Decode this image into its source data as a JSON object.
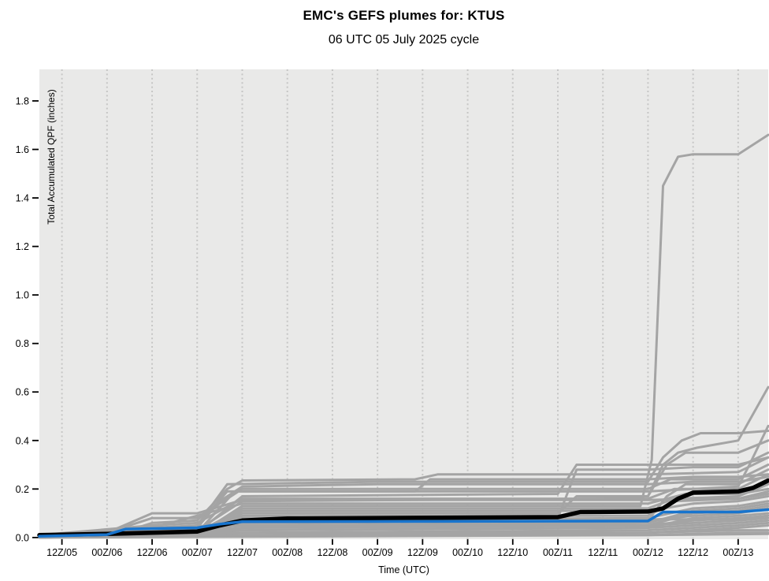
{
  "header": {
    "title": "EMC's GEFS plumes for: KTUS",
    "subtitle": "06 UTC 05 July 2025 cycle"
  },
  "chart_data": {
    "type": "line",
    "title": "EMC's GEFS plumes for: KTUS",
    "subtitle": "06 UTC 05 July 2025 cycle",
    "xlabel": "Time (UTC)",
    "ylabel": "Total Accumulated QPF (inches)",
    "x_unit": "forecast hours after 06 UTC 05 July 2025",
    "xlim": [
      0,
      194
    ],
    "ylim": [
      -0.007,
      1.93
    ],
    "x_ticks": [
      6,
      18,
      30,
      42,
      54,
      66,
      78,
      90,
      102,
      114,
      126,
      138,
      150,
      162,
      174,
      186
    ],
    "x_tick_labels": [
      "12Z/05",
      "00Z/06",
      "12Z/06",
      "00Z/07",
      "12Z/07",
      "00Z/08",
      "12Z/08",
      "00Z/09",
      "12Z/09",
      "00Z/10",
      "12Z/10",
      "00Z/11",
      "12Z/11",
      "00Z/12",
      "12Z/12",
      "00Z/13"
    ],
    "y_ticks": [
      0.0,
      0.2,
      0.4,
      0.6,
      0.8,
      1.0,
      1.2,
      1.4,
      1.6,
      1.8
    ],
    "grid": "vertical-dashed",
    "legend": "none",
    "colors": {
      "panel_bg": "#e9e9e8",
      "grid": "#c6c6c5",
      "member": "#a4a4a4",
      "mean": "#000000",
      "control": "#1874cd",
      "axis": "#000000"
    },
    "mean": {
      "name": "ensemble mean",
      "width": 5.5,
      "points": [
        [
          0,
          0.01
        ],
        [
          18,
          0.015
        ],
        [
          30,
          0.02
        ],
        [
          42,
          0.025
        ],
        [
          48,
          0.05
        ],
        [
          54,
          0.07
        ],
        [
          66,
          0.078
        ],
        [
          138,
          0.084
        ],
        [
          144,
          0.105
        ],
        [
          162,
          0.107
        ],
        [
          166,
          0.12
        ],
        [
          170,
          0.16
        ],
        [
          174,
          0.185
        ],
        [
          186,
          0.19
        ],
        [
          190,
          0.205
        ],
        [
          194,
          0.235
        ]
      ]
    },
    "control": {
      "name": "control member",
      "width": 3.5,
      "points": [
        [
          0,
          0.005
        ],
        [
          18,
          0.012
        ],
        [
          23,
          0.035
        ],
        [
          42,
          0.04
        ],
        [
          48,
          0.055
        ],
        [
          54,
          0.065
        ],
        [
          162,
          0.068
        ],
        [
          166,
          0.105
        ],
        [
          186,
          0.105
        ],
        [
          194,
          0.115
        ]
      ]
    },
    "members": [
      [
        [
          0,
          0.01
        ],
        [
          18,
          0.01
        ],
        [
          42,
          0.02
        ],
        [
          48,
          0.07
        ],
        [
          54,
          0.13
        ],
        [
          160,
          0.13
        ],
        [
          163,
          0.32
        ],
        [
          166,
          1.45
        ],
        [
          170,
          1.57
        ],
        [
          174,
          1.58
        ],
        [
          186,
          1.58
        ],
        [
          194,
          1.66
        ]
      ],
      [
        [
          0,
          0.01
        ],
        [
          30,
          0.02
        ],
        [
          42,
          0.05
        ],
        [
          50,
          0.22
        ],
        [
          90,
          0.23
        ],
        [
          162,
          0.23
        ],
        [
          166,
          0.33
        ],
        [
          171,
          0.4
        ],
        [
          176,
          0.43
        ],
        [
          186,
          0.43
        ],
        [
          194,
          0.44
        ]
      ],
      [
        [
          0,
          0.01
        ],
        [
          24,
          0.03
        ],
        [
          30,
          0.06
        ],
        [
          42,
          0.07
        ],
        [
          50,
          0.2
        ],
        [
          54,
          0.235
        ],
        [
          100,
          0.24
        ],
        [
          106,
          0.26
        ],
        [
          162,
          0.26
        ],
        [
          186,
          0.27
        ],
        [
          194,
          0.33
        ]
      ],
      [
        [
          0,
          0.0
        ],
        [
          42,
          0.02
        ],
        [
          52,
          0.19
        ],
        [
          162,
          0.19
        ],
        [
          174,
          0.2
        ],
        [
          186,
          0.21
        ],
        [
          189,
          0.3
        ],
        [
          194,
          0.46
        ]
      ],
      [
        [
          0,
          0.01
        ],
        [
          42,
          0.03
        ],
        [
          54,
          0.15
        ],
        [
          150,
          0.16
        ],
        [
          162,
          0.17
        ],
        [
          166,
          0.3
        ],
        [
          170,
          0.35
        ],
        [
          175,
          0.37
        ],
        [
          186,
          0.4
        ],
        [
          194,
          0.62
        ]
      ],
      [
        [
          0,
          0.0
        ],
        [
          42,
          0.01
        ],
        [
          54,
          0.1
        ],
        [
          138,
          0.1
        ],
        [
          143,
          0.17
        ],
        [
          162,
          0.17
        ],
        [
          167,
          0.3
        ],
        [
          172,
          0.35
        ],
        [
          186,
          0.35
        ],
        [
          194,
          0.4
        ]
      ],
      [
        [
          0,
          0.01
        ],
        [
          42,
          0.02
        ],
        [
          54,
          0.08
        ],
        [
          138,
          0.08
        ],
        [
          143,
          0.28
        ],
        [
          162,
          0.28
        ],
        [
          174,
          0.29
        ],
        [
          186,
          0.29
        ],
        [
          194,
          0.35
        ]
      ],
      [
        [
          0,
          0.0
        ],
        [
          42,
          0.02
        ],
        [
          54,
          0.17
        ],
        [
          138,
          0.18
        ],
        [
          143,
          0.3
        ],
        [
          162,
          0.3
        ],
        [
          186,
          0.3
        ],
        [
          194,
          0.33
        ]
      ],
      [
        [
          0,
          0.01
        ],
        [
          18,
          0.02
        ],
        [
          30,
          0.08
        ],
        [
          42,
          0.08
        ],
        [
          54,
          0.2
        ],
        [
          162,
          0.2
        ],
        [
          168,
          0.24
        ],
        [
          186,
          0.24
        ],
        [
          194,
          0.3
        ]
      ],
      [
        [
          0,
          0.0
        ],
        [
          42,
          0.01
        ],
        [
          54,
          0.06
        ],
        [
          162,
          0.07
        ],
        [
          167,
          0.17
        ],
        [
          172,
          0.22
        ],
        [
          186,
          0.22
        ],
        [
          194,
          0.28
        ]
      ],
      [
        [
          0,
          0.01
        ],
        [
          30,
          0.05
        ],
        [
          42,
          0.06
        ],
        [
          54,
          0.16
        ],
        [
          162,
          0.16
        ],
        [
          169,
          0.2
        ],
        [
          186,
          0.2
        ],
        [
          194,
          0.26
        ]
      ],
      [
        [
          0,
          0.0
        ],
        [
          42,
          0.02
        ],
        [
          54,
          0.12
        ],
        [
          162,
          0.12
        ],
        [
          169,
          0.16
        ],
        [
          186,
          0.17
        ],
        [
          194,
          0.22
        ]
      ],
      [
        [
          0,
          0.01
        ],
        [
          30,
          0.04
        ],
        [
          54,
          0.14
        ],
        [
          162,
          0.14
        ],
        [
          172,
          0.18
        ],
        [
          186,
          0.18
        ],
        [
          194,
          0.2
        ]
      ],
      [
        [
          0,
          0.0
        ],
        [
          42,
          0.01
        ],
        [
          54,
          0.09
        ],
        [
          162,
          0.09
        ],
        [
          169,
          0.15
        ],
        [
          186,
          0.16
        ],
        [
          194,
          0.19
        ]
      ],
      [
        [
          0,
          0.01
        ],
        [
          42,
          0.02
        ],
        [
          54,
          0.11
        ],
        [
          162,
          0.11
        ],
        [
          174,
          0.14
        ],
        [
          186,
          0.15
        ],
        [
          194,
          0.17
        ]
      ],
      [
        [
          0,
          0.0
        ],
        [
          30,
          0.02
        ],
        [
          54,
          0.07
        ],
        [
          162,
          0.08
        ],
        [
          174,
          0.12
        ],
        [
          186,
          0.13
        ],
        [
          194,
          0.15
        ]
      ],
      [
        [
          0,
          0.01
        ],
        [
          54,
          0.05
        ],
        [
          162,
          0.06
        ],
        [
          174,
          0.11
        ],
        [
          186,
          0.12
        ],
        [
          194,
          0.14
        ]
      ],
      [
        [
          0,
          0.0
        ],
        [
          42,
          0.01
        ],
        [
          54,
          0.04
        ],
        [
          162,
          0.05
        ],
        [
          174,
          0.1
        ],
        [
          186,
          0.11
        ],
        [
          194,
          0.13
        ]
      ],
      [
        [
          0,
          0.01
        ],
        [
          30,
          0.03
        ],
        [
          54,
          0.06
        ],
        [
          162,
          0.07
        ],
        [
          174,
          0.09
        ],
        [
          186,
          0.1
        ],
        [
          194,
          0.12
        ]
      ],
      [
        [
          0,
          0.0
        ],
        [
          54,
          0.03
        ],
        [
          162,
          0.04
        ],
        [
          174,
          0.08
        ],
        [
          186,
          0.09
        ],
        [
          194,
          0.1
        ]
      ],
      [
        [
          0,
          0.01
        ],
        [
          54,
          0.05
        ],
        [
          162,
          0.05
        ],
        [
          174,
          0.07
        ],
        [
          186,
          0.08
        ],
        [
          194,
          0.09
        ]
      ],
      [
        [
          0,
          0.0
        ],
        [
          30,
          0.02
        ],
        [
          54,
          0.04
        ],
        [
          162,
          0.05
        ],
        [
          186,
          0.07
        ],
        [
          194,
          0.08
        ]
      ],
      [
        [
          0,
          0.01
        ],
        [
          54,
          0.03
        ],
        [
          162,
          0.04
        ],
        [
          186,
          0.06
        ],
        [
          194,
          0.07
        ]
      ],
      [
        [
          0,
          0.0
        ],
        [
          54,
          0.02
        ],
        [
          162,
          0.03
        ],
        [
          186,
          0.05
        ],
        [
          194,
          0.06
        ]
      ],
      [
        [
          0,
          0.01
        ],
        [
          54,
          0.02
        ],
        [
          162,
          0.02
        ],
        [
          186,
          0.04
        ],
        [
          194,
          0.05
        ]
      ],
      [
        [
          0,
          0.0
        ],
        [
          54,
          0.01
        ],
        [
          162,
          0.02
        ],
        [
          186,
          0.03
        ],
        [
          194,
          0.03
        ]
      ],
      [
        [
          0,
          0.0
        ],
        [
          54,
          0.01
        ],
        [
          162,
          0.01
        ],
        [
          186,
          0.02
        ],
        [
          194,
          0.02
        ]
      ],
      [
        [
          0,
          0.01
        ],
        [
          30,
          0.04
        ],
        [
          42,
          0.05
        ],
        [
          50,
          0.19
        ],
        [
          100,
          0.19
        ],
        [
          104,
          0.24
        ],
        [
          162,
          0.24
        ],
        [
          174,
          0.25
        ],
        [
          186,
          0.25
        ],
        [
          194,
          0.26
        ]
      ],
      [
        [
          0,
          0.0
        ],
        [
          30,
          0.03
        ],
        [
          42,
          0.04
        ],
        [
          48,
          0.15
        ],
        [
          54,
          0.21
        ],
        [
          90,
          0.22
        ],
        [
          162,
          0.22
        ],
        [
          174,
          0.23
        ],
        [
          186,
          0.23
        ],
        [
          194,
          0.25
        ]
      ],
      [
        [
          0,
          0.0
        ],
        [
          162,
          0.01
        ],
        [
          194,
          0.015
        ]
      ],
      [
        [
          0,
          0.01
        ],
        [
          18,
          0.02
        ],
        [
          30,
          0.1
        ],
        [
          42,
          0.1
        ],
        [
          54,
          0.155
        ],
        [
          162,
          0.155
        ],
        [
          174,
          0.16
        ],
        [
          186,
          0.16
        ],
        [
          194,
          0.18
        ]
      ],
      [
        [
          0,
          0.0
        ],
        [
          42,
          0.02
        ],
        [
          54,
          0.065
        ],
        [
          120,
          0.065
        ],
        [
          126,
          0.075
        ],
        [
          162,
          0.075
        ],
        [
          186,
          0.075
        ],
        [
          194,
          0.09
        ]
      ]
    ]
  }
}
